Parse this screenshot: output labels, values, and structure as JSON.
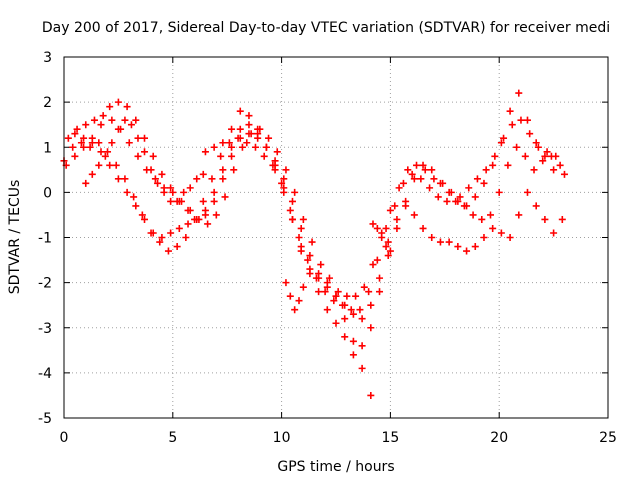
{
  "chart_data": {
    "type": "scatter",
    "title": "Day 200 of 2017, Sidereal Day-to-day VTEC variation (SDTVAR) for receiver medi",
    "xlabel": "GPS time / hours",
    "ylabel": "SDTVAR / TECUs",
    "xlim": [
      0,
      25
    ],
    "ylim": [
      -5,
      3
    ],
    "x_ticks": [
      "0",
      "5",
      "10",
      "15",
      "20",
      "25"
    ],
    "y_ticks": [
      "3",
      "2",
      "1",
      "0",
      "-1",
      "-2",
      "-3",
      "-4",
      "-5"
    ],
    "grid": true,
    "marker": "plus",
    "color": "#ff0000",
    "series": [
      {
        "x": [
          0.0,
          0.4,
          0.8,
          1.2,
          1.6,
          2.0,
          2.4,
          2.8,
          3.2,
          3.6,
          4.0,
          4.4,
          4.8,
          5.2,
          5.6,
          6.0,
          6.4,
          6.8,
          7.2,
          7.6,
          8.0,
          8.4,
          8.8,
          9.2,
          9.6,
          10.0,
          10.4,
          10.8,
          11.2,
          11.6,
          12.0,
          12.4,
          12.8,
          13.2,
          13.6,
          14.0,
          14.4,
          14.8,
          15.2,
          15.6,
          16.0,
          16.4,
          16.8,
          17.2,
          17.6,
          18.0,
          18.4,
          18.8,
          19.2,
          19.6,
          20.0,
          20.4,
          20.8,
          21.2,
          21.6,
          22.0,
          22.4,
          22.8
        ],
        "y": [
          0.7,
          1.0,
          1.1,
          1.0,
          1.1,
          0.9,
          0.6,
          0.3,
          -0.1,
          -0.5,
          -0.9,
          -1.1,
          -1.3,
          -1.2,
          -1.0,
          -0.6,
          -0.2,
          0.3,
          0.8,
          1.1,
          1.2,
          1.1,
          1.0,
          0.8,
          0.6,
          0.2,
          -0.4,
          -1.0,
          -1.5,
          -1.9,
          -2.2,
          -2.4,
          -2.5,
          -2.6,
          -2.6,
          -2.2,
          -1.5,
          -0.8,
          -0.3,
          0.2,
          0.4,
          0.3,
          0.1,
          -0.1,
          -0.2,
          -0.2,
          -0.3,
          -0.5,
          -0.6,
          -0.5,
          0.0,
          0.6,
          1.0,
          0.8,
          0.5,
          0.7,
          0.8,
          0.6
        ]
      },
      {
        "x": [
          0.2,
          0.6,
          1.0,
          1.4,
          1.8,
          2.2,
          2.6,
          3.0,
          3.4,
          3.8,
          4.2,
          4.6,
          5.0,
          5.4,
          5.8,
          6.2,
          6.6,
          7.0,
          7.4,
          7.8,
          8.2,
          8.6,
          9.0,
          9.4,
          9.8,
          10.2,
          10.6,
          11.0,
          11.4,
          11.8,
          12.2,
          12.6,
          13.0,
          13.4,
          13.8,
          14.2,
          14.6,
          15.0,
          15.4,
          15.8,
          16.2,
          16.6,
          17.0,
          17.4,
          17.8,
          18.2,
          18.6,
          19.0,
          19.4,
          19.8,
          20.2,
          20.6,
          21.0,
          21.4,
          21.8,
          22.2,
          22.6,
          23.0
        ],
        "y": [
          1.2,
          1.4,
          1.5,
          1.6,
          1.7,
          1.6,
          1.4,
          1.1,
          0.8,
          0.5,
          0.3,
          0.1,
          0.0,
          -0.2,
          -0.4,
          -0.6,
          -0.7,
          -0.5,
          -0.1,
          0.5,
          1.0,
          1.3,
          1.4,
          1.2,
          0.9,
          0.5,
          0.0,
          -0.6,
          -1.1,
          -1.6,
          -1.9,
          -2.2,
          -2.3,
          -2.3,
          -2.1,
          -1.6,
          -0.9,
          -0.4,
          0.1,
          0.5,
          0.6,
          0.5,
          0.3,
          0.2,
          0.0,
          -0.1,
          0.1,
          0.3,
          0.5,
          0.8,
          1.2,
          1.5,
          1.6,
          1.3,
          1.0,
          0.9,
          0.8,
          0.4
        ]
      },
      {
        "x": [
          0.5,
          0.9,
          1.3,
          1.7,
          2.1,
          2.5,
          2.9,
          3.3,
          3.7,
          4.1,
          4.5,
          4.9,
          5.3,
          5.7,
          6.1,
          6.5,
          6.9,
          7.3,
          7.7,
          8.1,
          8.5,
          8.9,
          9.3,
          9.7,
          10.1,
          10.5,
          10.9,
          11.3,
          11.7,
          12.1,
          12.5,
          12.9,
          13.3,
          13.7,
          14.1,
          14.5,
          14.9,
          15.3,
          15.7,
          16.1,
          16.5,
          16.9,
          17.3,
          17.7,
          18.1,
          18.5,
          18.9,
          19.3,
          19.7,
          20.1,
          20.5,
          20.9,
          21.3,
          21.7,
          22.1,
          22.5,
          22.9
        ],
        "y": [
          1.3,
          1.2,
          1.1,
          0.9,
          0.6,
          0.3,
          0.0,
          -0.3,
          -0.6,
          -0.9,
          -1.0,
          -0.9,
          -0.8,
          -0.7,
          -0.6,
          -0.4,
          0.0,
          0.5,
          1.0,
          1.4,
          1.5,
          1.3,
          1.0,
          0.6,
          0.1,
          -0.6,
          -1.3,
          -1.7,
          -1.9,
          -2.1,
          -2.3,
          -2.5,
          -2.7,
          -2.8,
          -2.5,
          -1.9,
          -1.1,
          -0.6,
          -0.3,
          -0.5,
          -0.8,
          -1.0,
          -1.1,
          -1.1,
          -1.2,
          -1.3,
          -1.2,
          -1.0,
          -0.8,
          -0.9,
          -1.0,
          -0.5,
          0.0,
          -0.3,
          -0.6,
          -0.9,
          -0.6
        ]
      },
      {
        "x": [
          0.1,
          0.5,
          0.9,
          1.3,
          1.7,
          2.1,
          2.5,
          2.9,
          3.3,
          3.7,
          4.1,
          4.5,
          4.9,
          5.3,
          5.7,
          6.1,
          6.5,
          6.9,
          7.3,
          7.7,
          8.1,
          8.5,
          8.9,
          9.3,
          9.7,
          10.1,
          10.5,
          10.9,
          11.3,
          11.7,
          12.1,
          12.5,
          12.9,
          13.3,
          13.7,
          14.1,
          14.5,
          14.9,
          15.3,
          15.7,
          16.1,
          16.5,
          16.9,
          17.3,
          17.7,
          18.1,
          18.5,
          18.9,
          19.3,
          19.7,
          20.1,
          20.5,
          20.9,
          21.3,
          21.7,
          22.1,
          22.5
        ],
        "y": [
          0.6,
          0.8,
          1.0,
          1.2,
          1.5,
          1.9,
          2.0,
          1.9,
          1.6,
          1.2,
          0.8,
          0.4,
          0.1,
          -0.2,
          -0.4,
          -0.6,
          -0.5,
          -0.2,
          0.3,
          0.8,
          1.2,
          1.3,
          1.2,
          1.0,
          0.7,
          0.3,
          -0.2,
          -0.8,
          -1.4,
          -1.8,
          -2.0,
          -2.3,
          -2.8,
          -3.3,
          -3.4,
          -3.0,
          -2.2,
          -1.4,
          -0.8,
          -0.2,
          0.3,
          0.6,
          0.5,
          0.2,
          0.0,
          -0.2,
          -0.3,
          -0.1,
          0.2,
          0.6,
          1.1,
          1.8,
          2.2,
          1.6,
          1.1,
          0.8,
          0.5
        ]
      },
      {
        "x": [
          1.0,
          1.3,
          1.6,
          1.9,
          2.2,
          2.5,
          2.8,
          3.1,
          3.4,
          3.7,
          4.0,
          4.3,
          4.6,
          4.9,
          5.2,
          5.5,
          5.8,
          6.1,
          6.4
        ],
        "y": [
          0.2,
          0.4,
          0.6,
          0.8,
          1.1,
          1.4,
          1.6,
          1.5,
          1.2,
          0.9,
          0.5,
          0.2,
          0.0,
          -0.2,
          -0.2,
          0.0,
          0.1,
          0.3,
          0.4
        ]
      },
      {
        "x": [
          6.5,
          6.9,
          7.3,
          7.7,
          8.1,
          8.5,
          8.9,
          9.3,
          9.7,
          10.1,
          10.5,
          10.9,
          11.3,
          11.7,
          12.1,
          12.5,
          12.9,
          13.3,
          13.7,
          14.1
        ],
        "y": [
          0.9,
          1.0,
          1.1,
          1.4,
          1.8,
          1.7,
          1.4,
          1.0,
          0.5,
          0.0,
          -0.6,
          -1.2,
          -1.8,
          -2.2,
          -2.6,
          -2.9,
          -3.2,
          -3.6,
          -3.9,
          -4.5
        ]
      },
      {
        "x": [
          10.2,
          10.4,
          10.6,
          10.8,
          11.0
        ],
        "y": [
          -2.0,
          -2.3,
          -2.6,
          -2.4,
          -2.1
        ]
      },
      {
        "x": [
          14.2,
          14.4,
          14.6,
          14.8,
          15.0
        ],
        "y": [
          -0.7,
          -0.8,
          -1.0,
          -1.2,
          -1.3
        ]
      }
    ]
  }
}
